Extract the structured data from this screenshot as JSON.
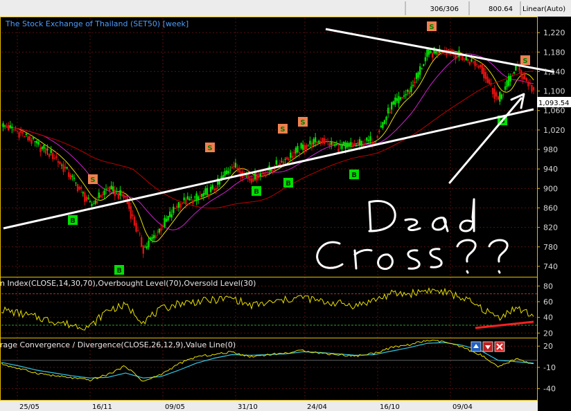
{
  "topbar": {
    "bar_index": "306/306",
    "price": "800.64",
    "scale_mode": "Linear(Auto)"
  },
  "price_panel": {
    "title": "The Stock Exchange of Thailand (SET50) [week]",
    "last_value_label": "1,093.54",
    "y_ticks": [
      "1,220",
      "1,180",
      "1,140",
      "1,100",
      "1,060",
      "1,020",
      "980",
      "940",
      "900",
      "860",
      "820",
      "780",
      "740"
    ]
  },
  "rsi_panel": {
    "title": "n Index(CLOSE,14,30,70),Overbought Level(70),Oversold Level(30)",
    "y_ticks": [
      "80",
      "60",
      "40",
      "20"
    ]
  },
  "macd_panel": {
    "title": "rage Convergence / Divergence(CLOSE,26,12,9),Value Line(0)",
    "y_ticks": [
      "20",
      "-10",
      "-40"
    ]
  },
  "x_axis": {
    "ticks": [
      "25/05",
      "16/11",
      "09/05",
      "31/10",
      "24/04",
      "16/10",
      "09/04"
    ]
  },
  "annotation": {
    "line1": "Dead",
    "line2": "Cross ??"
  },
  "colors": {
    "up_candle": "#00e000",
    "down_candle": "#e01010",
    "ma_short": "#e8e000",
    "ma_mid": "#d020d0",
    "ma_long": "#c00000",
    "buy_signal": "#00e000",
    "sell_signal": "#f08050",
    "trendline": "#ffffff",
    "rsi_line": "#e8e000",
    "macd_line": "#e8e000",
    "signal_line": "#30c8e8",
    "axis_border": "#e8c000",
    "title": "#4f9cff"
  },
  "chart_data": [
    {
      "type": "line",
      "panel": "price",
      "title": "The Stock Exchange of Thailand (SET50) [week]",
      "ylim": [
        720,
        1250
      ],
      "x": [
        0,
        10,
        20,
        30,
        40,
        50,
        60,
        70,
        80,
        90,
        100,
        110,
        120,
        130,
        140,
        150,
        160,
        170,
        180,
        190,
        200,
        210,
        220,
        230,
        240,
        250,
        260,
        270,
        280,
        290,
        300
      ],
      "series": [
        {
          "name": "close",
          "values": [
            1030,
            1015,
            990,
            965,
            920,
            865,
            900,
            880,
            775,
            820,
            870,
            880,
            900,
            950,
            920,
            935,
            960,
            985,
            1000,
            985,
            990,
            1000,
            1070,
            1100,
            1175,
            1185,
            1170,
            1150,
            1080,
            1150,
            1100
          ]
        }
      ],
      "sell_signals": [
        "S",
        "S",
        "S",
        "S",
        "S",
        "S"
      ],
      "buy_signals": [
        "B",
        "B",
        "B",
        "B",
        "B",
        "B"
      ],
      "y_ticks": [
        1220,
        1180,
        1140,
        1100,
        1060,
        1020,
        980,
        940,
        900,
        860,
        820,
        780,
        740
      ],
      "x_ticks": [
        "25/05",
        "16/11",
        "09/05",
        "31/10",
        "24/04",
        "16/10",
        "09/04"
      ]
    },
    {
      "type": "line",
      "panel": "rsi",
      "ylim": [
        15,
        90
      ],
      "series": [
        {
          "name": "RSI",
          "values": [
            50,
            45,
            40,
            35,
            30,
            28,
            50,
            55,
            35,
            50,
            58,
            60,
            62,
            65,
            55,
            58,
            62,
            66,
            60,
            58,
            55,
            62,
            70,
            70,
            75,
            72,
            65,
            52,
            40,
            52,
            42
          ]
        }
      ],
      "levels": [
        70,
        30
      ],
      "y_ticks": [
        80,
        60,
        40,
        20
      ]
    },
    {
      "type": "line",
      "panel": "macd",
      "ylim": [
        -55,
        30
      ],
      "series": [
        {
          "name": "MACD",
          "values": [
            -5,
            -12,
            -18,
            -22,
            -25,
            -28,
            -20,
            -8,
            -30,
            -20,
            -5,
            5,
            8,
            12,
            5,
            8,
            10,
            14,
            10,
            8,
            6,
            10,
            18,
            22,
            28,
            26,
            18,
            8,
            -10,
            2,
            -5
          ]
        },
        {
          "name": "Signal",
          "values": [
            -3,
            -8,
            -14,
            -18,
            -22,
            -25,
            -24,
            -18,
            -25,
            -23,
            -14,
            -4,
            3,
            8,
            7,
            8,
            9,
            12,
            11,
            9,
            7,
            8,
            13,
            18,
            24,
            25,
            21,
            14,
            0,
            -2,
            -4
          ]
        }
      ],
      "levels": [
        0
      ],
      "y_ticks": [
        20,
        -10,
        -40
      ]
    }
  ]
}
